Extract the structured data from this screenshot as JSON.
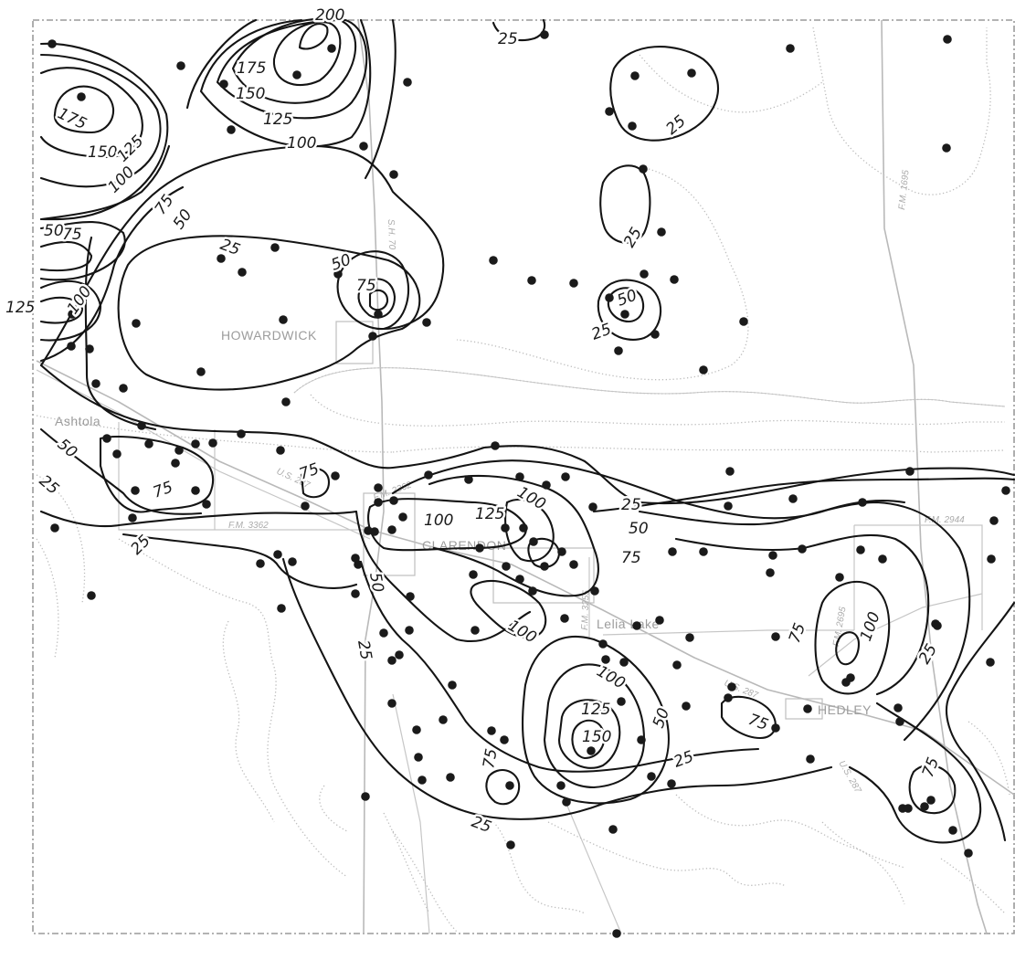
{
  "places": {
    "howardwick": "HOWARDWICK",
    "ashtola": "Ashtola",
    "clarendon": "CLARENDON",
    "lelia_lake": "Lelia Lake",
    "hedley": "HEDLEY"
  },
  "roads": {
    "fm_3362": "F.M. 3362",
    "fm_2944": "F.M. 2944",
    "fm_1695": "F.M. 1695",
    "us_287_west": "U.S. 287",
    "us_287_mid": "U.S. 287",
    "us_287_east": "U.S. 287",
    "sh_70": "S.H. 70",
    "fm_3255": "F.M. 3255",
    "fm_2695": "F.M. 2695",
    "fm_2362": "F.M. 2362"
  },
  "contour_labels": {
    "c200": "200",
    "c175a": "175",
    "c150a": "150",
    "c125a": "125",
    "c100a": "100",
    "c175b": "175",
    "c150b": "150",
    "c125b": "125",
    "c100b": "100",
    "c75a": "75",
    "c50a": "50",
    "c125c": "125",
    "c100c": "100",
    "c75b": "75",
    "c50b": "50",
    "c25a": "25",
    "c25top": "25",
    "c25r1": "25",
    "c25r2": "25",
    "c50r": "50",
    "c25r3": "25",
    "c50h": "50",
    "c75h": "75",
    "c50w": "50",
    "c25w": "25",
    "c75w": "75",
    "c75w2": "75",
    "c25w2": "25",
    "c100cl": "100",
    "c125cl": "125",
    "c100cl2": "100",
    "c25e": "25",
    "c50e": "50",
    "c75e": "75",
    "c100s": "100",
    "c50s": "50",
    "c25s": "25",
    "c100m": "100",
    "c125m": "125",
    "c150m": "150",
    "c75m": "75",
    "c50m": "50",
    "c25m": "25",
    "c25m2": "25",
    "c75ee": "75",
    "c100ee": "100",
    "c75ee2": "75",
    "c25ee": "25",
    "c75ee3": "75"
  }
}
